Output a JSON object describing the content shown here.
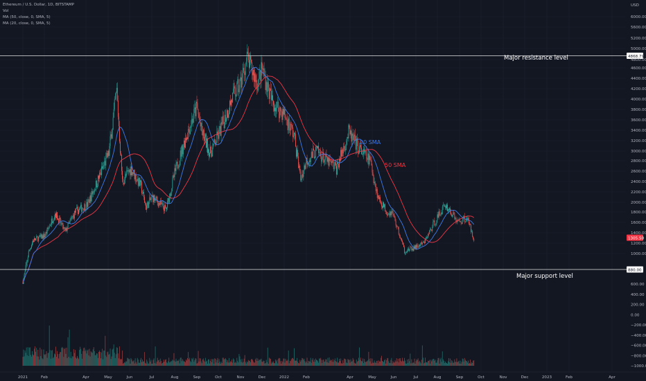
{
  "legend": {
    "symbol": "Ethereum / U.S. Dollar, 1D, BITSTAMP",
    "vol": "Vol",
    "ma50": "MA (50, close, 0, SMA, 5)",
    "ma20": "MA (20, close, 0, SMA, 5)"
  },
  "chart_data": {
    "type": "candlestick",
    "currency_label": "USD",
    "price_axis_ticks": [
      6000,
      5600,
      5200,
      5000,
      4800,
      4600,
      4400,
      4200,
      4000,
      3800,
      3600,
      3400,
      3200,
      3000,
      2800,
      2600,
      2400,
      2200,
      2000,
      1800,
      1600,
      1400,
      1200,
      1000
    ],
    "price_axis_labels": [
      "6000.00",
      "5600.00",
      "5200.00",
      "5000.00",
      "4800.00",
      "4600.00",
      "4400.00",
      "4200.00",
      "4000.00",
      "3800.00",
      "3600.00",
      "3400.00",
      "3200.00",
      "3000.00",
      "2800.00",
      "2600.00",
      "2400.00",
      "2200.00",
      "2000.00",
      "1800.00",
      "1600.00",
      "1400.00",
      "1200.00",
      "1000.00"
    ],
    "volume_axis_ticks": [
      600,
      400,
      200,
      0,
      -200,
      -400,
      -600,
      -800,
      -1000
    ],
    "volume_axis_labels": [
      "600.00",
      "400.00",
      "200.00",
      "0.00",
      "−200.00",
      "−400.00",
      "−600.00",
      "−800.00",
      "−1000.00"
    ],
    "time_axis": [
      "2021",
      "Feb",
      "Apr",
      "May",
      "Jun",
      "Jul",
      "Aug",
      "Sep",
      "Oct",
      "Nov",
      "Dec",
      "2022",
      "Feb",
      "Apr",
      "May",
      "Jun",
      "Jul",
      "Aug",
      "Sep",
      "Oct",
      "Nov",
      "Dec",
      "2023",
      "Feb",
      "Apr"
    ],
    "price_series": {
      "dates": [
        "2021-01-01",
        "2021-01-15",
        "2021-02-01",
        "2021-02-15",
        "2021-03-01",
        "2021-03-15",
        "2021-04-01",
        "2021-04-15",
        "2021-05-01",
        "2021-05-12",
        "2021-05-20",
        "2021-06-01",
        "2021-06-15",
        "2021-06-22",
        "2021-07-01",
        "2021-07-20",
        "2021-08-01",
        "2021-08-15",
        "2021-09-01",
        "2021-09-07",
        "2021-09-20",
        "2021-10-01",
        "2021-10-20",
        "2021-11-01",
        "2021-11-10",
        "2021-11-25",
        "2021-12-01",
        "2021-12-15",
        "2022-01-01",
        "2022-01-15",
        "2022-01-24",
        "2022-02-01",
        "2022-02-15",
        "2022-03-01",
        "2022-03-15",
        "2022-04-01",
        "2022-04-15",
        "2022-05-01",
        "2022-05-12",
        "2022-05-25",
        "2022-06-01",
        "2022-06-18",
        "2022-07-01",
        "2022-07-15",
        "2022-08-01",
        "2022-08-14",
        "2022-09-01",
        "2022-09-13",
        "2022-09-23"
      ],
      "close": [
        730,
        1250,
        1350,
        1780,
        1420,
        1800,
        1950,
        2400,
        2950,
        4150,
        2400,
        2650,
        2300,
        1900,
        2100,
        1850,
        2550,
        3200,
        3850,
        3400,
        2950,
        3300,
        4000,
        4300,
        4800,
        4300,
        4600,
        3950,
        3700,
        3300,
        2450,
        2800,
        3000,
        2800,
        2650,
        3350,
        3050,
        2800,
        2100,
        1800,
        1800,
        1050,
        1100,
        1200,
        1650,
        1950,
        1600,
        1700,
        1300
      ]
    },
    "sma_labels": [
      {
        "text": "20 SMA",
        "color": "#3f7be8"
      },
      {
        "text": "50 SMA",
        "color": "#f23645"
      }
    ],
    "levels": [
      {
        "label": "Major resistance level",
        "price": 4868.79,
        "price_label": "4868.79"
      },
      {
        "label": "Major support level",
        "price": 880.0,
        "price_label": "880.00"
      }
    ],
    "last_price": {
      "value": 1305.5,
      "label": "1305.50",
      "color": "#f23645"
    },
    "colors": {
      "up": "#26a69a",
      "down": "#ef5350",
      "background": "#131722",
      "sma20": "#3f7be8",
      "sma50": "#f23645"
    }
  }
}
